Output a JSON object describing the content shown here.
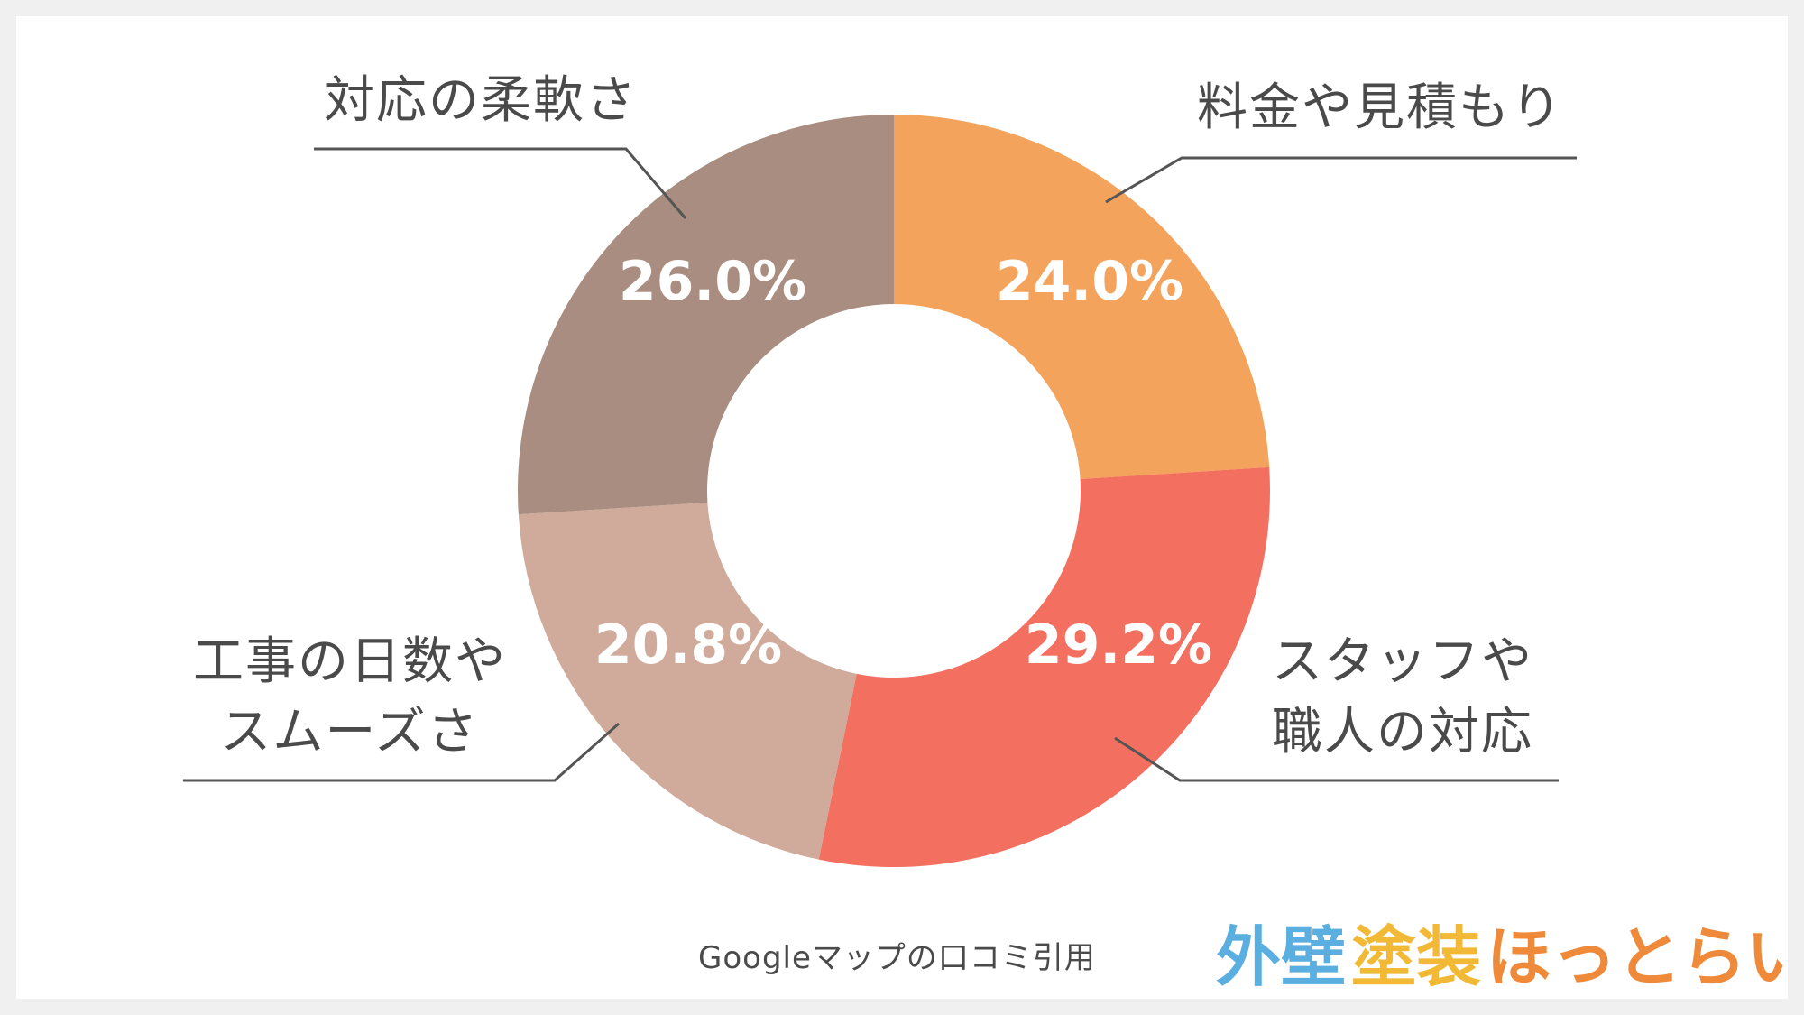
{
  "chart_data": {
    "type": "pie",
    "variant": "donut",
    "categories": [
      "料金や見積もり",
      "スタッフや職人の対応",
      "工事の日数やスムーズさ",
      "対応の柔軟さ"
    ],
    "category_lines": [
      [
        "料金や見積もり"
      ],
      [
        "スタッフや",
        "職人の対応"
      ],
      [
        "工事の日数や",
        "スムーズさ"
      ],
      [
        "対応の柔軟さ"
      ]
    ],
    "values": [
      24.0,
      29.2,
      20.8,
      26.0
    ],
    "value_labels": [
      "24.0%",
      "29.2%",
      "20.8%",
      "26.0%"
    ],
    "colors": [
      "#f4a35c",
      "#f37061",
      "#d0ab9c",
      "#a98d80"
    ],
    "start": "12 o'clock",
    "direction": "clockwise",
    "legend": "none"
  },
  "source_note": "Googleマップの口コミ引用",
  "logo": {
    "part1": "外壁",
    "part2": "塗装",
    "part3": "ほっとらいん",
    "colors": [
      "#5aaee0",
      "#f2b936",
      "#ef8a3a"
    ]
  }
}
